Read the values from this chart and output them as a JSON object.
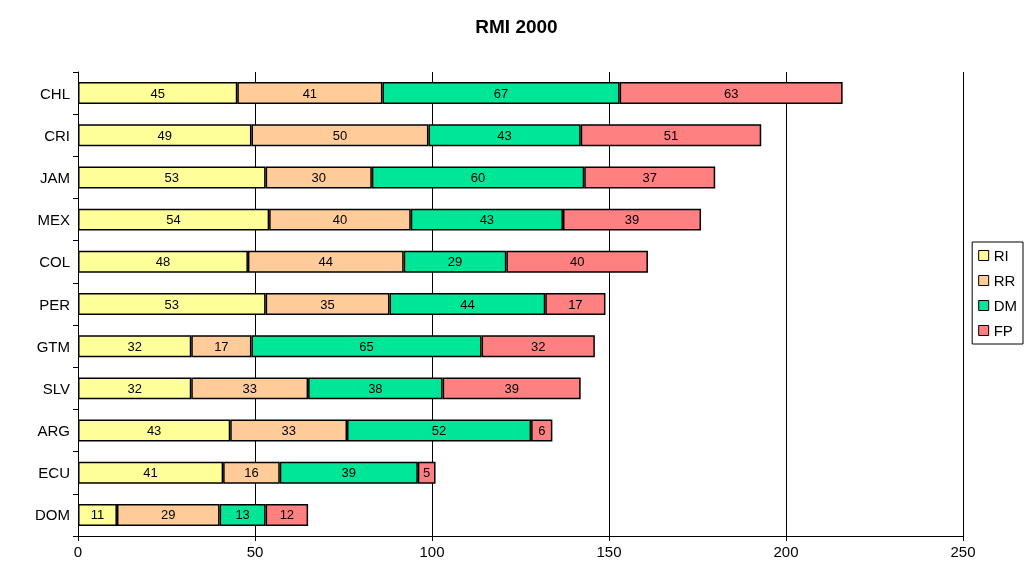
{
  "chart_data": {
    "type": "bar",
    "orientation": "horizontal",
    "stacked": true,
    "title": "RMI 2000",
    "categories": [
      "CHL",
      "CRI",
      "JAM",
      "MEX",
      "COL",
      "PER",
      "GTM",
      "SLV",
      "ARG",
      "ECU",
      "DOM"
    ],
    "series": [
      {
        "name": "RI",
        "color": "#ffff99",
        "values": [
          45,
          49,
          53,
          54,
          48,
          53,
          32,
          32,
          43,
          41,
          11
        ]
      },
      {
        "name": "RR",
        "color": "#ffcc99",
        "values": [
          41,
          50,
          30,
          40,
          44,
          35,
          17,
          33,
          33,
          16,
          29
        ]
      },
      {
        "name": "DM",
        "color": "#00e699",
        "values": [
          67,
          43,
          60,
          43,
          29,
          44,
          65,
          38,
          52,
          39,
          13
        ]
      },
      {
        "name": "FP",
        "color": "#ff8080",
        "values": [
          63,
          51,
          37,
          39,
          40,
          17,
          32,
          39,
          6,
          5,
          12
        ]
      }
    ],
    "xlim": [
      0,
      250
    ],
    "xticks": [
      0,
      50,
      100,
      150,
      200,
      250
    ],
    "grid": "x",
    "legend": "right",
    "data_labels": true
  }
}
